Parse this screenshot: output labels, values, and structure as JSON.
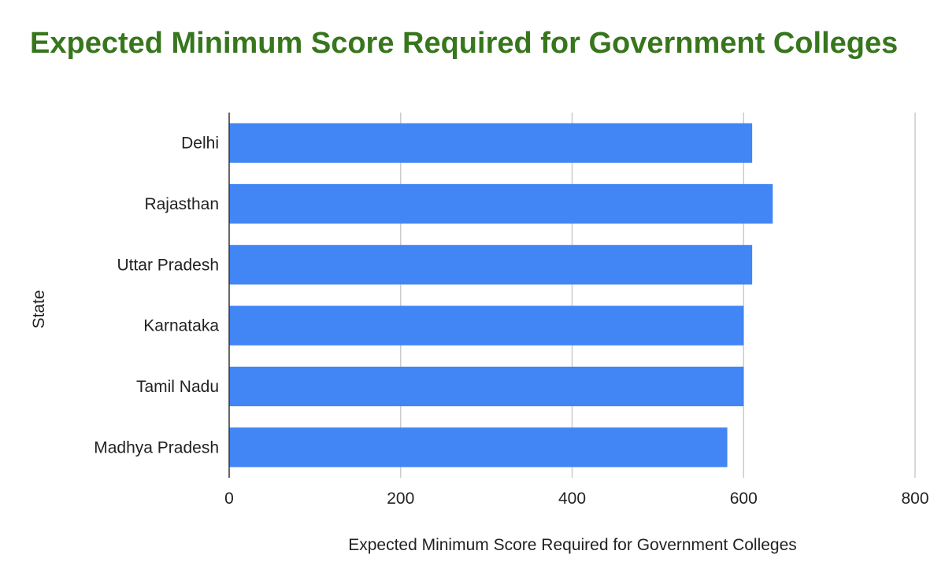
{
  "chart_data": {
    "type": "bar",
    "orientation": "horizontal",
    "title": "Expected Minimum Score Required for Government Colleges",
    "xlabel": "Expected Minimum Score Required for Government Colleges",
    "ylabel": "State",
    "categories": [
      "Delhi",
      "Rajasthan",
      "Uttar Pradesh",
      "Karnataka",
      "Tamil Nadu",
      "Madhya Pradesh"
    ],
    "values": [
      610,
      634,
      610,
      600,
      600,
      581
    ],
    "xlim": [
      0,
      800
    ],
    "xticks": [
      0,
      200,
      400,
      600,
      800
    ],
    "grid": true,
    "bar_color": "#4285f4",
    "title_color": "#38761d"
  }
}
